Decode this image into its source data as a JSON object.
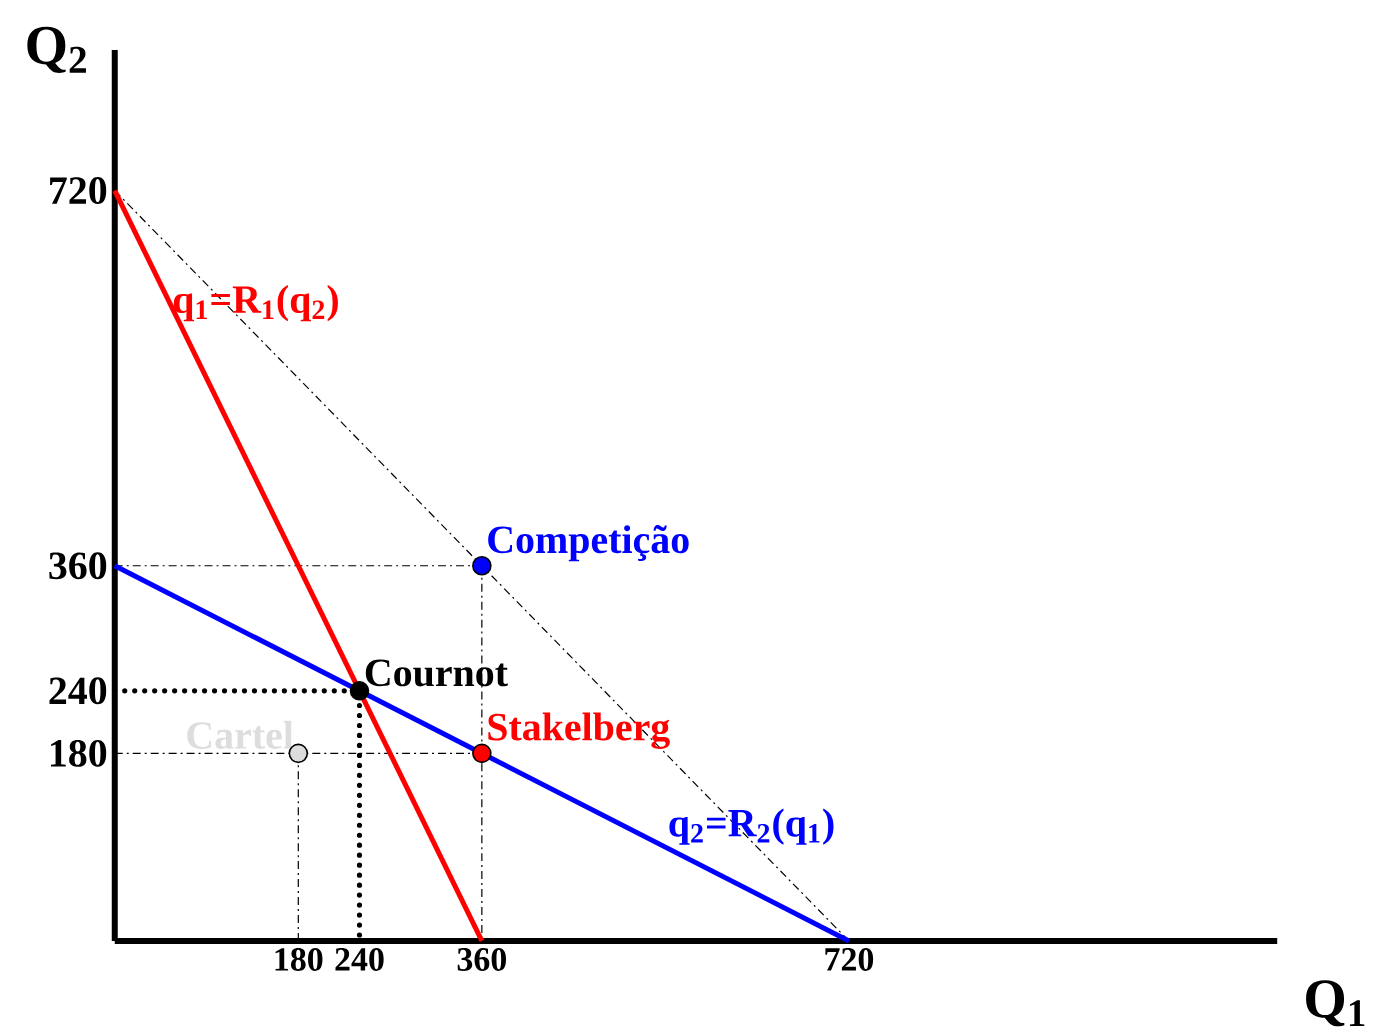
{
  "chart_data": {
    "type": "line",
    "xlabel": "Q$_{1}$",
    "ylabel": "Q$_{2}$",
    "xlim": [
      0,
      1140
    ],
    "ylim": [
      0,
      855
    ],
    "xticks": [
      180,
      240,
      360,
      720
    ],
    "yticks": [
      180,
      240,
      360,
      720
    ],
    "series": [
      {
        "x": [
          0,
          720
        ],
        "values": [
          720,
          0
        ],
        "color": "#000000",
        "line_style": "dashed"
      },
      {
        "x": [
          0,
          360
        ],
        "values": [
          360,
          360
        ],
        "color": "#000000",
        "line_style": "dashed"
      },
      {
        "x": [
          360,
          360
        ],
        "values": [
          360,
          0
        ],
        "color": "#000000",
        "line_style": "dashed"
      },
      {
        "x": [
          0,
          360
        ],
        "values": [
          180,
          180
        ],
        "color": "#000000",
        "line_style": "dashed"
      },
      {
        "x": [
          180,
          180
        ],
        "values": [
          180,
          0
        ],
        "color": "#000000",
        "line_style": "dashed"
      },
      {
        "x": [
          0,
          240,
          240
        ],
        "values": [
          240,
          240,
          0
        ],
        "color": "#000000",
        "line_style": "dotted"
      },
      {
        "name": "q$_{1}$=R$_{1}$(q$_{2}$)",
        "x": [
          0,
          360
        ],
        "values": [
          720,
          0
        ],
        "color": "#ff0000",
        "line_style": "solid"
      },
      {
        "name": "q$_{2}$=R$_{2}$(q$_{1}$)",
        "x": [
          0,
          720
        ],
        "values": [
          360,
          0
        ],
        "color": "#0000ff",
        "line_style": "solid"
      },
      {
        "type": "scatter",
        "marker": "circle",
        "name": "Competição",
        "x": [
          360
        ],
        "values": [
          360
        ],
        "color": "#0000ff"
      },
      {
        "type": "scatter",
        "marker": "circle",
        "name": "Cournot",
        "x": [
          240
        ],
        "values": [
          240
        ],
        "color": "#000000"
      },
      {
        "type": "scatter",
        "marker": "circle",
        "name": "Stakelberg",
        "x": [
          360
        ],
        "values": [
          180
        ],
        "color": "#ff0000"
      },
      {
        "type": "scatter",
        "marker": "circle",
        "name": "Cartel",
        "x": [
          180
        ],
        "values": [
          180
        ],
        "color": "#dddddd"
      }
    ]
  }
}
